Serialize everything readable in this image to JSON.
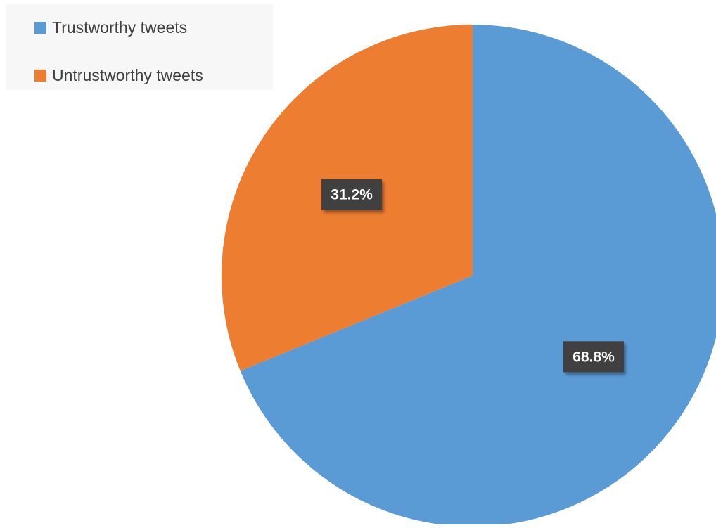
{
  "chart_data": {
    "type": "pie",
    "title": "",
    "series": [
      {
        "name": "Trustworthy tweets",
        "value": 68.8,
        "label": "68.8%",
        "color": "#5b9bd5"
      },
      {
        "name": "Untrustworthy tweets",
        "value": 31.2,
        "label": "31.2%",
        "color": "#ed7d31"
      }
    ],
    "legend_position": "top-left"
  }
}
